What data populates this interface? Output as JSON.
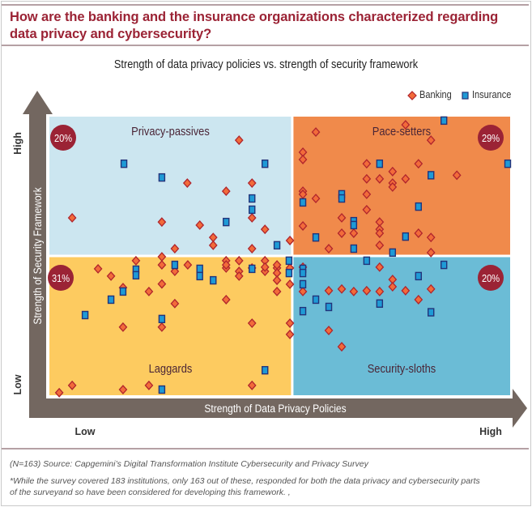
{
  "header": {
    "question": "How are the banking and the insurance organizations characterized regarding data privacy and cybersecurity?"
  },
  "footer": {
    "source": "(N=163)  Source: Capgemini’s Digital Transformation Institute Cybersecurity and Privacy Survey",
    "note": "*While the survey covered 183 institutions, only 163 out of these, responded for both the data privacy and cybersecurity parts of the surveyand so have been considered for developing this framework. ,"
  },
  "colors": {
    "title": "#9b2335",
    "q_top_left": "#cce6f0",
    "q_top_right": "#f08a4b",
    "q_bottom_left": "#fdcb60",
    "q_bottom_right": "#6bbcd6",
    "badge": "#9b2335",
    "axis": "#736760",
    "banking_fill": "#f26b3a",
    "banking_stroke": "#b0252d",
    "insurance_fill": "#1e9ad6",
    "insurance_stroke": "#23337a"
  },
  "chart_data": {
    "type": "scatter",
    "title": "Strength of data privacy policies vs. strength of security framework",
    "xlabel": "Strength of Data Privacy Policies",
    "ylabel": "Strength of Security Framework",
    "x_tick_labels": {
      "low": "Low",
      "high": "High"
    },
    "y_tick_labels": {
      "low": "Low",
      "high": "High"
    },
    "xlim": [
      0,
      10
    ],
    "ylim": [
      0,
      10
    ],
    "split": {
      "x": 5.27,
      "y": 5.0
    },
    "legend_position": "top-right",
    "grid": false,
    "quadrants": [
      {
        "id": "top_left",
        "label": "Privacy-passives",
        "percent": "20%"
      },
      {
        "id": "top_right",
        "label": "Pace-setters",
        "percent": "29%"
      },
      {
        "id": "bottom_left",
        "label": "Laggards",
        "percent": "31%"
      },
      {
        "id": "bottom_right",
        "label": "Security-sloths",
        "percent": "20%"
      }
    ],
    "series": [
      {
        "name": "Banking",
        "marker": "diamond",
        "points": [
          [
            0.51,
            6.36
          ],
          [
            4.12,
            9.13
          ],
          [
            3.0,
            7.6
          ],
          [
            4.4,
            7.6
          ],
          [
            3.84,
            7.31
          ],
          [
            4.4,
            6.36
          ],
          [
            2.45,
            6.21
          ],
          [
            3.27,
            6.1
          ],
          [
            4.68,
            5.95
          ],
          [
            3.56,
            5.66
          ],
          [
            5.22,
            5.55
          ],
          [
            3.56,
            5.38
          ],
          [
            2.73,
            5.26
          ],
          [
            4.4,
            5.26
          ],
          [
            2.45,
            4.97
          ],
          [
            3.84,
            4.83
          ],
          [
            4.68,
            4.83
          ],
          [
            3.84,
            4.57
          ],
          [
            4.12,
            4.45
          ],
          [
            4.4,
            4.57
          ],
          [
            4.68,
            4.45
          ],
          [
            4.94,
            4.57
          ],
          [
            5.22,
            4.57
          ],
          [
            2.73,
            4.45
          ],
          [
            7.72,
            9.68
          ],
          [
            5.78,
            9.42
          ],
          [
            5.5,
            8.7
          ],
          [
            5.5,
            8.44
          ],
          [
            6.88,
            8.29
          ],
          [
            7.44,
            8.01
          ],
          [
            6.88,
            7.75
          ],
          [
            7.16,
            7.75
          ],
          [
            7.44,
            7.6
          ],
          [
            7.44,
            7.46
          ],
          [
            7.72,
            7.75
          ],
          [
            5.5,
            7.31
          ],
          [
            5.5,
            7.2
          ],
          [
            5.78,
            7.05
          ],
          [
            6.88,
            7.2
          ],
          [
            6.88,
            6.65
          ],
          [
            6.34,
            6.36
          ],
          [
            7.16,
            6.21
          ],
          [
            7.16,
            5.95
          ],
          [
            7.16,
            5.81
          ],
          [
            5.5,
            6.07
          ],
          [
            6.34,
            5.81
          ],
          [
            6.6,
            5.81
          ],
          [
            7.16,
            5.38
          ],
          [
            6.06,
            5.26
          ],
          [
            8.27,
            9.13
          ],
          [
            8.0,
            8.29
          ],
          [
            8.83,
            7.88
          ],
          [
            8.0,
            5.81
          ],
          [
            8.27,
            5.66
          ],
          [
            8.27,
            5.12
          ],
          [
            1.89,
            4.83
          ],
          [
            2.45,
            4.68
          ],
          [
            1.07,
            4.54
          ],
          [
            1.35,
            4.28
          ],
          [
            2.45,
            4.0
          ],
          [
            1.61,
            3.87
          ],
          [
            2.17,
            3.73
          ],
          [
            1.61,
            2.46
          ],
          [
            2.45,
            2.46
          ],
          [
            0.51,
            0.38
          ],
          [
            1.61,
            0.23
          ],
          [
            2.17,
            0.38
          ],
          [
            0.23,
            0.12
          ],
          [
            3.01,
            4.68
          ],
          [
            3.84,
            4.68
          ],
          [
            4.12,
            4.83
          ],
          [
            4.12,
            4.28
          ],
          [
            4.68,
            4.6
          ],
          [
            4.94,
            4.68
          ],
          [
            4.94,
            4.39
          ],
          [
            4.94,
            4.13
          ],
          [
            4.94,
            3.73
          ],
          [
            5.22,
            3.99
          ],
          [
            2.73,
            3.3
          ],
          [
            3.84,
            3.44
          ],
          [
            4.4,
            2.6
          ],
          [
            5.22,
            2.6
          ],
          [
            5.22,
            2.2
          ],
          [
            4.4,
            0.38
          ],
          [
            5.5,
            4.6
          ],
          [
            7.16,
            4.6
          ],
          [
            7.44,
            4.16
          ],
          [
            7.44,
            3.9
          ],
          [
            6.06,
            3.76
          ],
          [
            6.88,
            3.76
          ],
          [
            7.72,
            3.76
          ],
          [
            5.5,
            3.73
          ],
          [
            6.34,
            3.82
          ],
          [
            6.6,
            3.73
          ],
          [
            7.16,
            3.73
          ],
          [
            6.06,
            2.34
          ],
          [
            6.34,
            1.76
          ],
          [
            8.27,
            3.82
          ],
          [
            8.0,
            3.44
          ]
        ]
      },
      {
        "name": "Insurance",
        "marker": "square",
        "points": [
          [
            1.63,
            8.29
          ],
          [
            2.45,
            7.8
          ],
          [
            4.68,
            8.29
          ],
          [
            4.4,
            7.05
          ],
          [
            4.4,
            6.65
          ],
          [
            3.84,
            6.21
          ],
          [
            4.94,
            5.38
          ],
          [
            7.16,
            8.29
          ],
          [
            5.5,
            6.91
          ],
          [
            6.34,
            7.2
          ],
          [
            6.34,
            7.05
          ],
          [
            6.6,
            6.24
          ],
          [
            6.6,
            6.1
          ],
          [
            5.78,
            5.66
          ],
          [
            7.72,
            5.69
          ],
          [
            6.6,
            5.26
          ],
          [
            7.44,
            5.12
          ],
          [
            8.55,
            9.83
          ],
          [
            9.93,
            8.29
          ],
          [
            8.27,
            7.88
          ],
          [
            8.0,
            6.76
          ],
          [
            1.89,
            4.51
          ],
          [
            1.89,
            4.31
          ],
          [
            1.61,
            3.73
          ],
          [
            1.35,
            3.44
          ],
          [
            0.79,
            2.89
          ],
          [
            2.45,
            2.75
          ],
          [
            2.45,
            0.23
          ],
          [
            2.73,
            4.68
          ],
          [
            3.27,
            4.54
          ],
          [
            3.27,
            4.28
          ],
          [
            3.56,
            4.13
          ],
          [
            4.4,
            4.54
          ],
          [
            5.2,
            4.83
          ],
          [
            5.2,
            4.39
          ],
          [
            4.68,
            0.92
          ],
          [
            6.88,
            4.83
          ],
          [
            5.5,
            4.54
          ],
          [
            5.5,
            4.39
          ],
          [
            5.5,
            3.99
          ],
          [
            5.78,
            3.44
          ],
          [
            6.06,
            3.18
          ],
          [
            7.16,
            3.3
          ],
          [
            5.5,
            3.03
          ],
          [
            8.55,
            4.68
          ],
          [
            8.0,
            4.28
          ],
          [
            8.27,
            2.99
          ]
        ]
      }
    ]
  }
}
